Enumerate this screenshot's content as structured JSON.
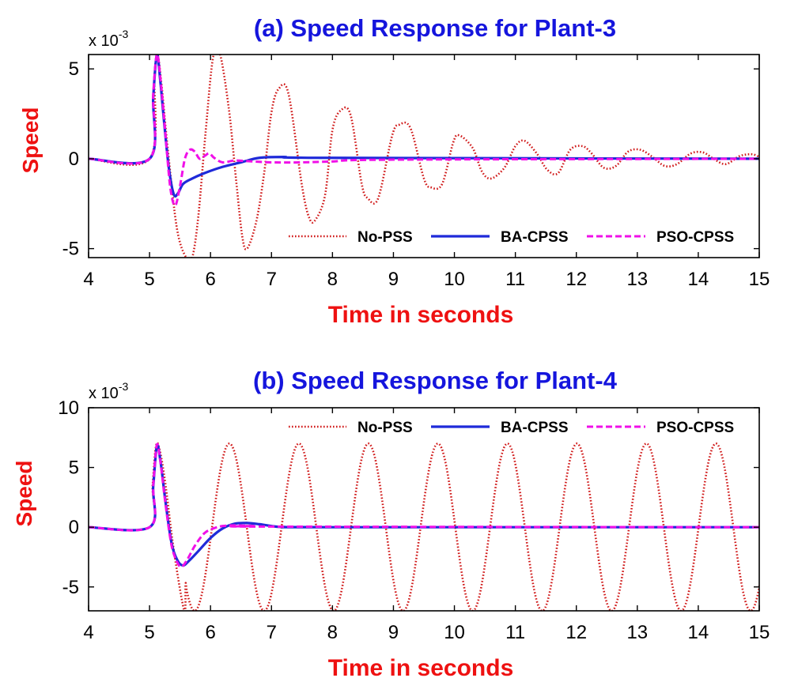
{
  "colors": {
    "title": "#1515dd",
    "label": "#ee1111",
    "no_pss": "#d01818",
    "ba_cpss": "#1f2ad9",
    "pso_cpss": "#f010e8",
    "axis": "#000000"
  },
  "chart_data": [
    {
      "type": "line",
      "title": "(a) Speed Response for Plant-3",
      "xlabel": "Time in seconds",
      "ylabel": "Speed",
      "multiplier_base": "x 10",
      "multiplier_exp": "-3",
      "xlim": [
        4,
        15
      ],
      "ylim": [
        -5.5,
        5.8
      ],
      "xticks": [
        4,
        5,
        6,
        7,
        8,
        9,
        10,
        11,
        12,
        13,
        14,
        15
      ],
      "yticks": [
        -5,
        0,
        5
      ],
      "grid": false,
      "legend_position": "bottom-right",
      "series": [
        {
          "name": "No-PSS",
          "style": "dotted",
          "x": [
            4,
            5,
            5.08,
            5.13,
            5.2,
            5.3,
            5.45,
            5.6,
            5.7,
            5.8,
            5.92,
            6.04,
            6.15,
            6.3,
            6.42,
            6.52,
            6.6,
            6.75,
            6.88,
            7.0,
            7.12,
            7.28,
            7.5,
            7.62,
            7.72,
            7.88,
            8.0,
            8.14,
            8.3,
            8.48,
            8.58,
            8.75,
            8.98,
            9.1,
            9.28,
            9.5,
            9.62,
            9.8,
            9.98,
            10.08,
            10.3,
            10.45,
            10.6,
            10.82,
            11.0,
            11.15,
            11.35,
            11.52,
            11.7,
            11.9,
            12.1,
            12.25,
            12.45,
            12.65,
            12.85,
            13.05,
            13.25,
            13.45,
            13.65,
            13.88,
            14.08,
            14.25,
            14.45,
            14.68,
            14.88,
            15.0
          ],
          "y": [
            0,
            0,
            4.6,
            5.8,
            4.0,
            0.5,
            -3.9,
            -5.5,
            -5.5,
            -3.2,
            1.5,
            5.6,
            5.9,
            2.8,
            -1.2,
            -4.3,
            -5.0,
            -3.5,
            -0.8,
            2.6,
            3.9,
            3.6,
            -1.5,
            -3.3,
            -3.4,
            -2.0,
            1.6,
            2.7,
            2.4,
            -1.4,
            -2.2,
            -2.2,
            1.3,
            1.9,
            1.7,
            -1.1,
            -1.6,
            -1.4,
            0.9,
            1.3,
            0.6,
            -0.7,
            -1.1,
            -0.5,
            0.7,
            1.0,
            0.3,
            -0.6,
            -0.8,
            0.5,
            0.7,
            0.3,
            -0.5,
            -0.4,
            0.4,
            0.5,
            0.1,
            -0.4,
            -0.3,
            0.3,
            0.35,
            0.0,
            -0.3,
            0.15,
            0.25,
            0.1
          ]
        },
        {
          "name": "BA-CPSS",
          "style": "solid",
          "x": [
            4,
            5,
            5.06,
            5.12,
            5.18,
            5.24,
            5.32,
            5.4,
            5.47,
            5.55,
            5.7,
            5.9,
            6.2,
            6.5,
            6.8,
            7.2,
            8.0,
            15
          ],
          "y": [
            0,
            0,
            3.4,
            5.8,
            4.2,
            2.0,
            -0.6,
            -2.0,
            -1.9,
            -1.4,
            -1.1,
            -0.8,
            -0.45,
            -0.2,
            0.05,
            0.1,
            0.05,
            0
          ]
        },
        {
          "name": "PSO-CPSS",
          "style": "dashed",
          "x": [
            4,
            5,
            5.06,
            5.12,
            5.18,
            5.26,
            5.34,
            5.42,
            5.5,
            5.58,
            5.66,
            5.74,
            5.82,
            5.9,
            5.98,
            6.06,
            6.2,
            6.4,
            6.7,
            7.0,
            7.5,
            8.0,
            9.0,
            15
          ],
          "y": [
            0,
            0,
            3.6,
            5.8,
            4.4,
            1.4,
            -1.6,
            -2.6,
            -1.5,
            0.0,
            0.5,
            0.4,
            0.0,
            0.15,
            0.3,
            0.05,
            -0.2,
            -0.1,
            -0.15,
            -0.2,
            -0.2,
            -0.15,
            -0.05,
            0
          ]
        }
      ]
    },
    {
      "type": "line",
      "title": "(b) Speed Response for Plant-4",
      "xlabel": "Time in seconds",
      "ylabel": "Speed",
      "multiplier_base": "x 10",
      "multiplier_exp": "-3",
      "xlim": [
        4,
        15
      ],
      "ylim": [
        -7,
        10
      ],
      "xticks": [
        4,
        5,
        6,
        7,
        8,
        9,
        10,
        11,
        12,
        13,
        14,
        15
      ],
      "yticks": [
        -5,
        0,
        5,
        10
      ],
      "grid": false,
      "legend_position": "top-right",
      "series": [
        {
          "name": "No-PSS",
          "style": "dotted",
          "period": 1.14,
          "phase": 5.1,
          "amplitude": 7.0,
          "x": [
            4,
            5,
            5.05,
            5.1,
            5.15,
            5.25,
            5.4,
            5.57,
            15
          ],
          "y": [
            0,
            0,
            3.5,
            6.6,
            6.8,
            4.0,
            -2.0,
            -7.0,
            0
          ]
        },
        {
          "name": "BA-CPSS",
          "style": "solid",
          "x": [
            4,
            5,
            5.06,
            5.12,
            5.18,
            5.26,
            5.36,
            5.46,
            5.55,
            5.65,
            5.8,
            6.0,
            6.2,
            6.4,
            6.6,
            6.8,
            7.0,
            7.2,
            8.0,
            15
          ],
          "y": [
            0,
            0,
            3.4,
            6.8,
            5.5,
            2.2,
            -1.3,
            -2.8,
            -3.2,
            -2.8,
            -2.0,
            -0.9,
            -0.1,
            0.3,
            0.35,
            0.25,
            0.1,
            0.02,
            0,
            0
          ]
        },
        {
          "name": "PSO-CPSS",
          "style": "dashed",
          "x": [
            4,
            5,
            5.06,
            5.12,
            5.18,
            5.26,
            5.36,
            5.46,
            5.53,
            5.62,
            5.75,
            5.9,
            6.05,
            6.2,
            6.4,
            6.7,
            7.0,
            15
          ],
          "y": [
            0,
            0,
            3.5,
            6.9,
            5.4,
            2.0,
            -1.5,
            -3.0,
            -3.3,
            -2.7,
            -1.5,
            -0.5,
            -0.1,
            0.1,
            0.15,
            0.1,
            0.05,
            0
          ]
        }
      ]
    }
  ]
}
